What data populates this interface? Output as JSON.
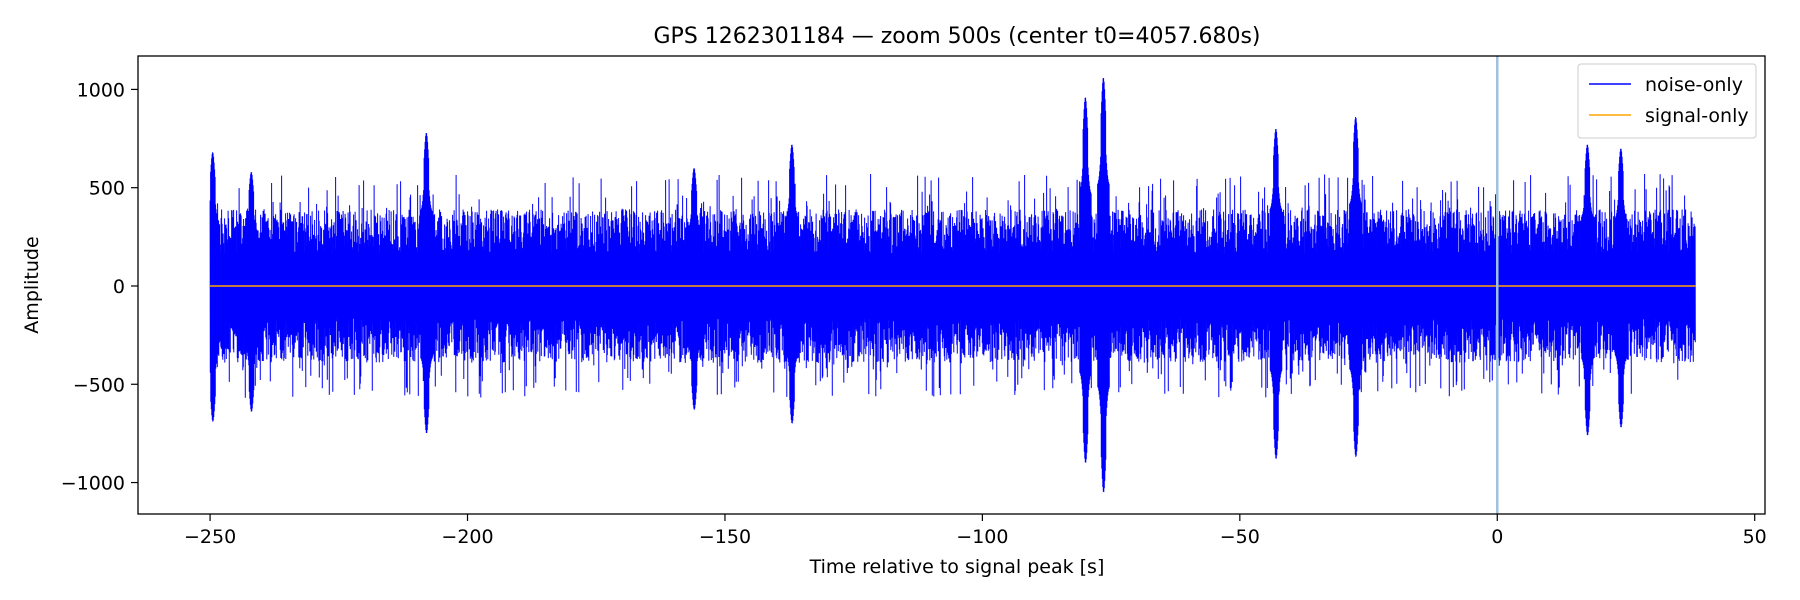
{
  "chart_data": {
    "type": "line",
    "title": "GPS 1262301184 — zoom 500s (center t0=4057.680s)",
    "xlabel": "Time relative to signal peak [s]",
    "ylabel": "Amplitude",
    "xlim": [
      -264,
      52
    ],
    "ylim": [
      -1160,
      1170
    ],
    "xticks": [
      -250,
      -200,
      -150,
      -100,
      -50,
      0,
      50
    ],
    "yticks": [
      -1000,
      -500,
      0,
      500,
      1000
    ],
    "xtick_labels": [
      "−250",
      "−200",
      "−150",
      "−100",
      "−50",
      "0",
      "50"
    ],
    "ytick_labels": [
      "−1000",
      "−500",
      "0",
      "500",
      "1000"
    ],
    "grid": false,
    "legend_position": "top-right",
    "vertical_marker": {
      "x": 0,
      "color": "#9ec1e0"
    },
    "series": [
      {
        "name": "noise-only",
        "color": "#0000ff",
        "x_range": [
          -250,
          38.5
        ],
        "typical_envelope": 300,
        "peaks": [
          {
            "x": -249.5,
            "max": 680,
            "min": -690
          },
          {
            "x": -242,
            "max": 580,
            "min": -640
          },
          {
            "x": -208,
            "max": 780,
            "min": -750
          },
          {
            "x": -156,
            "max": 600,
            "min": -630
          },
          {
            "x": -137,
            "max": 720,
            "min": -700
          },
          {
            "x": -80,
            "max": 960,
            "min": -900
          },
          {
            "x": -76.5,
            "max": 1060,
            "min": -1050
          },
          {
            "x": -43,
            "max": 800,
            "min": -880
          },
          {
            "x": -27.5,
            "max": 860,
            "min": -870
          },
          {
            "x": 17.5,
            "max": 720,
            "min": -760
          },
          {
            "x": 24,
            "max": 700,
            "min": -720
          }
        ]
      },
      {
        "name": "signal-only",
        "color": "#ffa500",
        "x_range": [
          -250,
          38.5
        ],
        "values_constant": 0
      }
    ]
  }
}
